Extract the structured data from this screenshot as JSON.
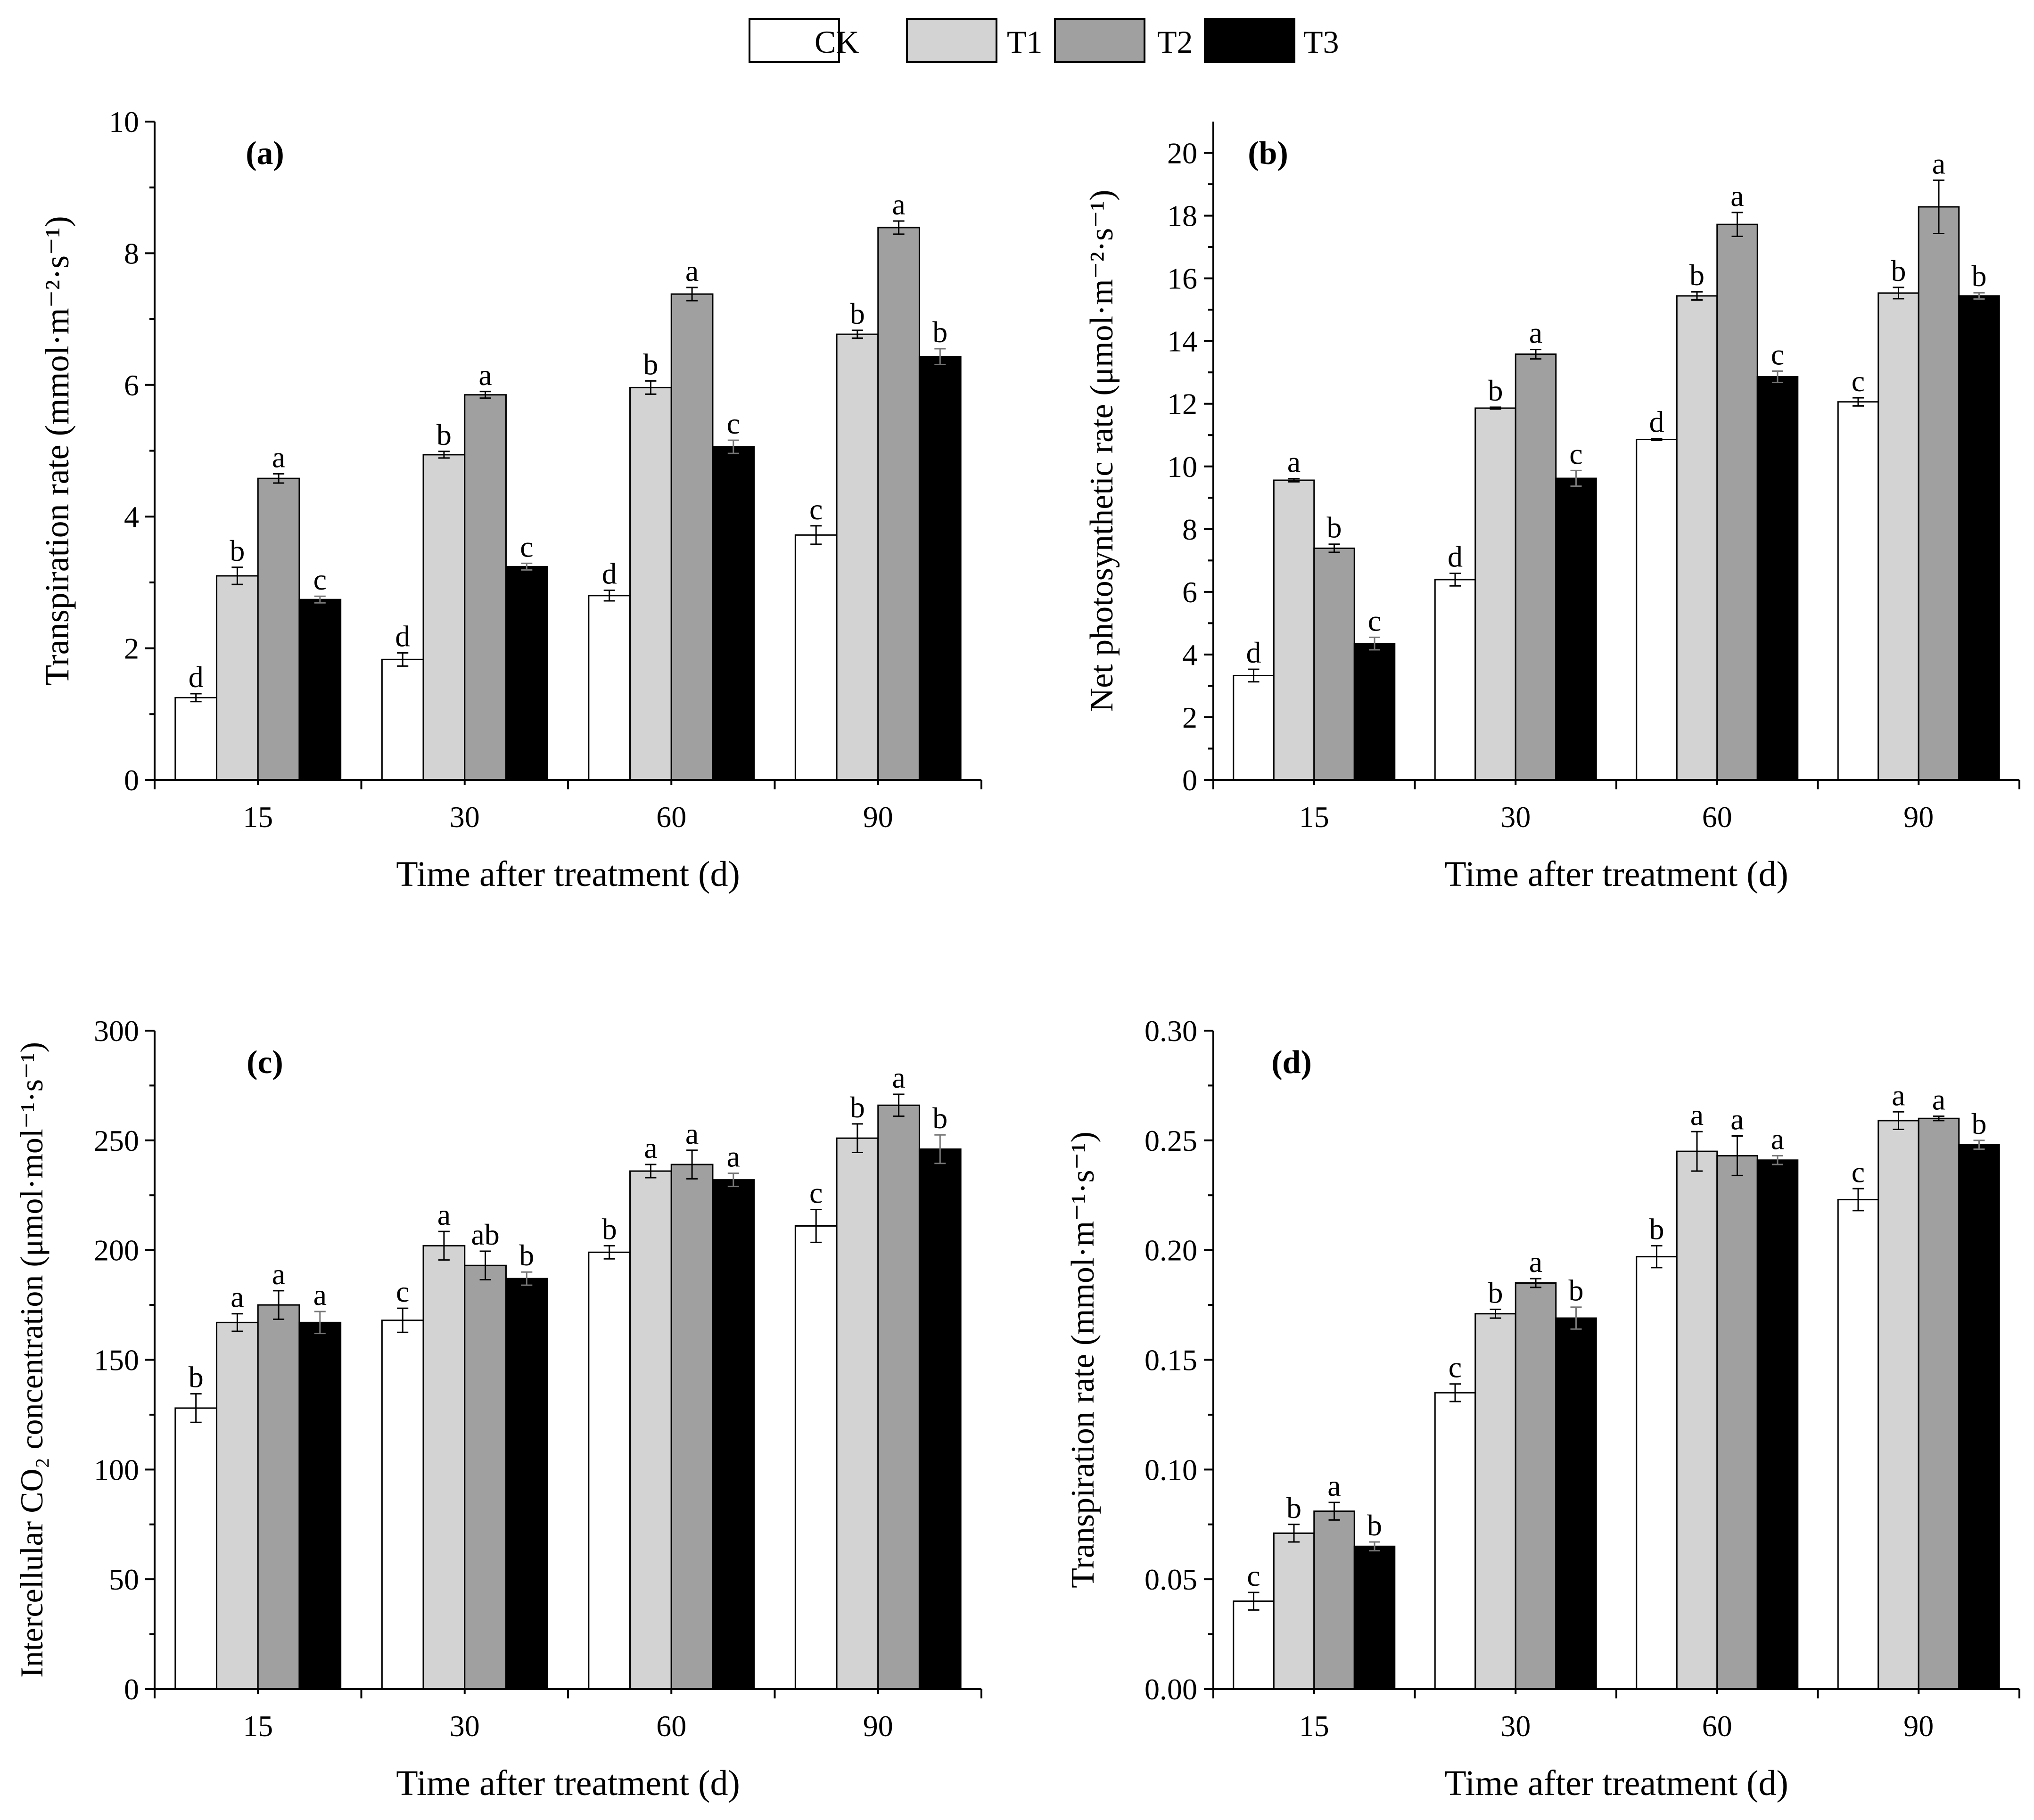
{
  "legend": [
    {
      "label": "CK",
      "color": "#ffffff"
    },
    {
      "label": "T1",
      "color": "#d3d3d3"
    },
    {
      "label": "T2",
      "color": "#a0a0a0"
    },
    {
      "label": "T3",
      "color": "#000000"
    }
  ],
  "chart_data": [
    {
      "type": "bar",
      "title": "(a)",
      "xlabel": "Time after treatment (d)",
      "ylabel": "Transpiration rate (mmol·m⁻²·s⁻¹)",
      "categories": [
        "15",
        "30",
        "60",
        "90"
      ],
      "ylim": [
        0,
        10
      ],
      "yticks": [
        0,
        2,
        4,
        6,
        8,
        10
      ],
      "yticklabels": [
        "0",
        "2",
        "4",
        "6",
        "8",
        "10"
      ],
      "series": [
        {
          "name": "CK",
          "values": [
            1.25,
            1.83,
            2.8,
            3.72
          ],
          "errors": [
            0.06,
            0.1,
            0.08,
            0.14
          ],
          "letters": [
            "d",
            "d",
            "d",
            "c"
          ]
        },
        {
          "name": "T1",
          "values": [
            3.1,
            4.94,
            5.96,
            6.77
          ],
          "errors": [
            0.13,
            0.05,
            0.1,
            0.06
          ],
          "letters": [
            "b",
            "b",
            "b",
            "b"
          ]
        },
        {
          "name": "T2",
          "values": [
            4.58,
            5.85,
            7.38,
            8.39
          ],
          "errors": [
            0.07,
            0.05,
            0.1,
            0.1
          ],
          "letters": [
            "a",
            "a",
            "a",
            "a"
          ]
        },
        {
          "name": "T3",
          "values": [
            2.74,
            3.24,
            5.06,
            6.43
          ],
          "errors": [
            0.05,
            0.05,
            0.1,
            0.12
          ],
          "letters": [
            "c",
            "c",
            "c",
            "b"
          ]
        }
      ]
    },
    {
      "type": "bar",
      "title": "(b)",
      "xlabel": "Time after treatment (d)",
      "ylabel": "Net photosynthetic rate (μmol·m⁻²·s⁻¹)",
      "categories": [
        "15",
        "30",
        "60",
        "90"
      ],
      "ylim": [
        0,
        21
      ],
      "yticks": [
        0,
        2,
        4,
        6,
        8,
        10,
        12,
        14,
        16,
        18,
        20
      ],
      "yticklabels": [
        "0",
        "2",
        "4",
        "6",
        "8",
        "10",
        "12",
        "14",
        "16",
        "18",
        "20"
      ],
      "series": [
        {
          "name": "CK",
          "values": [
            3.33,
            6.39,
            10.86,
            12.06
          ],
          "errors": [
            0.2,
            0.2,
            0.03,
            0.13
          ],
          "letters": [
            "d",
            "d",
            "d",
            "c"
          ]
        },
        {
          "name": "T1",
          "values": [
            9.56,
            11.86,
            15.44,
            15.53
          ],
          "errors": [
            0.05,
            0.03,
            0.13,
            0.18
          ],
          "letters": [
            "a",
            "b",
            "b",
            "b"
          ]
        },
        {
          "name": "T2",
          "values": [
            7.39,
            13.58,
            17.72,
            18.28
          ],
          "errors": [
            0.13,
            0.15,
            0.38,
            0.85
          ],
          "letters": [
            "b",
            "a",
            "a",
            "a"
          ]
        },
        {
          "name": "T3",
          "values": [
            4.35,
            9.62,
            12.86,
            15.44
          ],
          "errors": [
            0.2,
            0.25,
            0.18,
            0.1
          ],
          "letters": [
            "c",
            "c",
            "c",
            "b"
          ]
        }
      ]
    },
    {
      "type": "bar",
      "title": "(c)",
      "xlabel": "Time after treatment (d)",
      "ylabel": "Intercellular CO₂ concentration (μmol·mol⁻¹·s⁻¹)",
      "categories": [
        "15",
        "30",
        "60",
        "90"
      ],
      "ylim": [
        0,
        300
      ],
      "yticks": [
        0,
        50,
        100,
        150,
        200,
        250,
        300
      ],
      "yticklabels": [
        "0",
        "50",
        "100",
        "150",
        "200",
        "250",
        "300"
      ],
      "series": [
        {
          "name": "CK",
          "values": [
            128,
            168,
            199,
            211
          ],
          "errors": [
            6.5,
            5.5,
            3,
            7.5
          ],
          "letters": [
            "b",
            "c",
            "b",
            "c"
          ]
        },
        {
          "name": "T1",
          "values": [
            167,
            202,
            236,
            251
          ],
          "errors": [
            4,
            6.5,
            3,
            6.5
          ],
          "letters": [
            "a",
            "a",
            "a",
            "b"
          ]
        },
        {
          "name": "T2",
          "values": [
            175,
            193,
            239,
            266
          ],
          "errors": [
            6.5,
            6.5,
            6.5,
            5
          ],
          "letters": [
            "a",
            "ab",
            "a",
            "a"
          ]
        },
        {
          "name": "T3",
          "values": [
            167,
            187,
            232,
            246
          ],
          "errors": [
            5,
            3,
            3,
            6.5
          ],
          "letters": [
            "a",
            "b",
            "a",
            "b"
          ]
        }
      ]
    },
    {
      "type": "bar",
      "title": "(d)",
      "xlabel": "Time after treatment (d)",
      "ylabel": "Transpiration rate (mmol·m⁻¹·s⁻¹)",
      "categories": [
        "15",
        "30",
        "60",
        "90"
      ],
      "ylim": [
        0,
        0.3
      ],
      "yticks": [
        0,
        0.05,
        0.1,
        0.15,
        0.2,
        0.25,
        0.3
      ],
      "yticklabels": [
        "0.00",
        "0.05",
        "0.10",
        "0.15",
        "0.20",
        "0.25",
        "0.30"
      ],
      "series": [
        {
          "name": "CK",
          "values": [
            0.04,
            0.135,
            0.197,
            0.223
          ],
          "errors": [
            0.004,
            0.004,
            0.005,
            0.005
          ],
          "letters": [
            "c",
            "c",
            "b",
            "c"
          ]
        },
        {
          "name": "T1",
          "values": [
            0.071,
            0.171,
            0.245,
            0.259
          ],
          "errors": [
            0.004,
            0.002,
            0.009,
            0.004
          ],
          "letters": [
            "b",
            "b",
            "a",
            "a"
          ]
        },
        {
          "name": "T2",
          "values": [
            0.081,
            0.185,
            0.243,
            0.26
          ],
          "errors": [
            0.004,
            0.002,
            0.009,
            0.001
          ],
          "letters": [
            "a",
            "a",
            "a",
            "a"
          ]
        },
        {
          "name": "T3",
          "values": [
            0.065,
            0.169,
            0.241,
            0.248
          ],
          "errors": [
            0.002,
            0.005,
            0.002,
            0.002
          ],
          "letters": [
            "b",
            "b",
            "a",
            "b"
          ]
        }
      ]
    }
  ]
}
